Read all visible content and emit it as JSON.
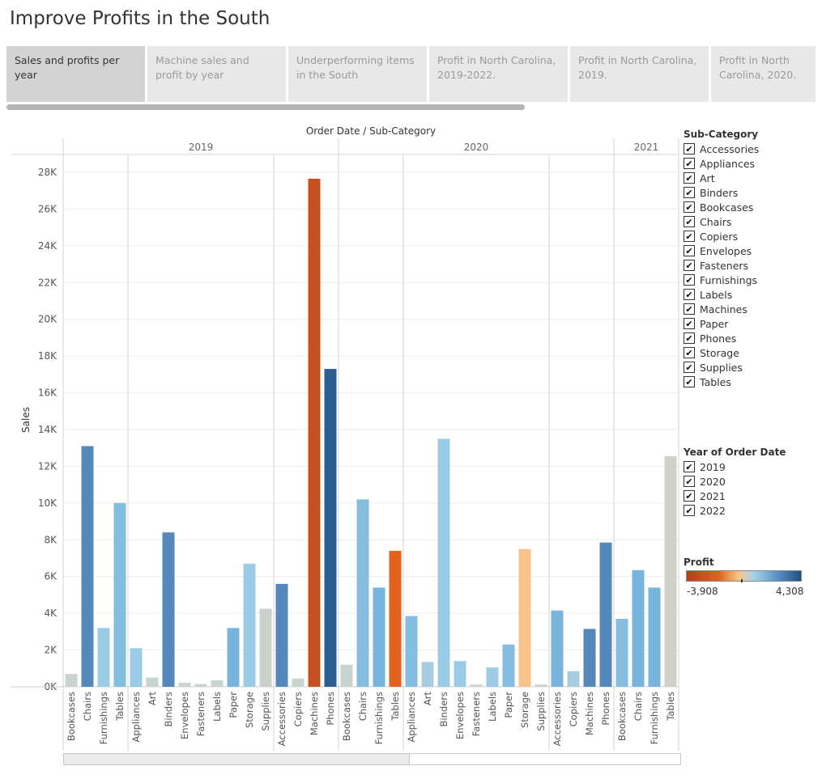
{
  "title": "Improve Profits in the South",
  "tabs": [
    {
      "label": "Sales and profits per year",
      "active": true
    },
    {
      "label": "Machine sales and profit by year",
      "active": false
    },
    {
      "label": "Underperforming items in the South",
      "active": false
    },
    {
      "label": "Profit in North Carolina, 2019-2022.",
      "active": false
    },
    {
      "label": "Profit in North Carolina, 2019.",
      "active": false
    },
    {
      "label": "Profit in North Carolina, 2020.",
      "active": false
    }
  ],
  "filters": {
    "subcategory_title": "Sub-Category",
    "subcategories": [
      "Accessories",
      "Appliances",
      "Art",
      "Binders",
      "Bookcases",
      "Chairs",
      "Copiers",
      "Envelopes",
      "Fasteners",
      "Furnishings",
      "Labels",
      "Machines",
      "Paper",
      "Phones",
      "Storage",
      "Supplies",
      "Tables"
    ],
    "year_title": "Year of Order Date",
    "years": [
      "2019",
      "2020",
      "2021",
      "2022"
    ],
    "check_glyph": "✔"
  },
  "profit_legend": {
    "title": "Profit",
    "min_label": "-3,908",
    "max_label": "4,308",
    "min": -3908,
    "max": 4308
  },
  "chart_data": {
    "type": "bar",
    "header": "Order Date / Sub-Category",
    "ylabel": "Sales",
    "ylim": [
      0,
      28000
    ],
    "yticks": [
      {
        "v": 0,
        "label": "0K"
      },
      {
        "v": 2000,
        "label": "2K"
      },
      {
        "v": 4000,
        "label": "4K"
      },
      {
        "v": 6000,
        "label": "6K"
      },
      {
        "v": 8000,
        "label": "8K"
      },
      {
        "v": 10000,
        "label": "10K"
      },
      {
        "v": 12000,
        "label": "12K"
      },
      {
        "v": 14000,
        "label": "14K"
      },
      {
        "v": 16000,
        "label": "16K"
      },
      {
        "v": 18000,
        "label": "18K"
      },
      {
        "v": 20000,
        "label": "20K"
      },
      {
        "v": 22000,
        "label": "22K"
      },
      {
        "v": 24000,
        "label": "24K"
      },
      {
        "v": 26000,
        "label": "26K"
      },
      {
        "v": 28000,
        "label": "28K"
      }
    ],
    "years": [
      {
        "label": "2019",
        "groups": [
          {
            "bars": [
              {
                "name": "Bookcases",
                "sales": 700,
                "color": "#c9d3d0"
              },
              {
                "name": "Chairs",
                "sales": 13100,
                "color": "#5589bb"
              },
              {
                "name": "Furnishings",
                "sales": 3200,
                "color": "#9ccbe6"
              },
              {
                "name": "Tables",
                "sales": 10000,
                "color": "#84bde0"
              }
            ]
          },
          {
            "bars": [
              {
                "name": "Appliances",
                "sales": 2100,
                "color": "#9ccbe6"
              },
              {
                "name": "Art",
                "sales": 500,
                "color": "#c9d3d0"
              },
              {
                "name": "Binders",
                "sales": 8400,
                "color": "#5589bb"
              },
              {
                "name": "Envelopes",
                "sales": 220,
                "color": "#c9d3d0"
              },
              {
                "name": "Fasteners",
                "sales": 150,
                "color": "#c9d3d0"
              },
              {
                "name": "Labels",
                "sales": 350,
                "color": "#c9d3d0"
              },
              {
                "name": "Paper",
                "sales": 3200,
                "color": "#79b4dd"
              },
              {
                "name": "Storage",
                "sales": 6700,
                "color": "#9ccbe6"
              },
              {
                "name": "Supplies",
                "sales": 4250,
                "color": "#cbd2ce"
              }
            ]
          },
          {
            "bars": [
              {
                "name": "Accessories",
                "sales": 5600,
                "color": "#5589bb"
              },
              {
                "name": "Copiers",
                "sales": 450,
                "color": "#c9d3d0"
              },
              {
                "name": "Machines",
                "sales": 27650,
                "color": "#c7501f"
              },
              {
                "name": "Phones",
                "sales": 17300,
                "color": "#2c5e92"
              }
            ]
          }
        ]
      },
      {
        "label": "2020",
        "groups": [
          {
            "bars": [
              {
                "name": "Bookcases",
                "sales": 1200,
                "color": "#c9d3d0"
              },
              {
                "name": "Chairs",
                "sales": 10200,
                "color": "#84bde0"
              },
              {
                "name": "Furnishings",
                "sales": 5400,
                "color": "#79b4dd"
              },
              {
                "name": "Tables",
                "sales": 7400,
                "color": "#e4621e"
              }
            ]
          },
          {
            "bars": [
              {
                "name": "Appliances",
                "sales": 3850,
                "color": "#84bde0"
              },
              {
                "name": "Art",
                "sales": 1350,
                "color": "#a7cbdf"
              },
              {
                "name": "Binders",
                "sales": 13500,
                "color": "#9ccbe6"
              },
              {
                "name": "Envelopes",
                "sales": 1400,
                "color": "#9ccbe6"
              },
              {
                "name": "Fasteners",
                "sales": 120,
                "color": "#c9d3d0"
              },
              {
                "name": "Labels",
                "sales": 1050,
                "color": "#9ccbe6"
              },
              {
                "name": "Paper",
                "sales": 2300,
                "color": "#84bde0"
              },
              {
                "name": "Storage",
                "sales": 7500,
                "color": "#f7c48c"
              },
              {
                "name": "Supplies",
                "sales": 120,
                "color": "#c9d3d0"
              }
            ]
          },
          {
            "bars": [
              {
                "name": "Accessories",
                "sales": 4150,
                "color": "#79b4dd"
              },
              {
                "name": "Copiers",
                "sales": 850,
                "color": "#a7cbdf"
              },
              {
                "name": "Machines",
                "sales": 3150,
                "color": "#5589bb"
              },
              {
                "name": "Phones",
                "sales": 7850,
                "color": "#5589bb"
              }
            ]
          }
        ]
      },
      {
        "label": "2021",
        "groups": [
          {
            "bars": [
              {
                "name": "Bookcases",
                "sales": 3700,
                "color": "#84bde0"
              },
              {
                "name": "Chairs",
                "sales": 6350,
                "color": "#79b4dd"
              },
              {
                "name": "Furnishings",
                "sales": 5400,
                "color": "#79b4dd"
              },
              {
                "name": "Tables",
                "sales": 12550,
                "color": "#cfd2c8"
              }
            ]
          }
        ]
      }
    ]
  }
}
